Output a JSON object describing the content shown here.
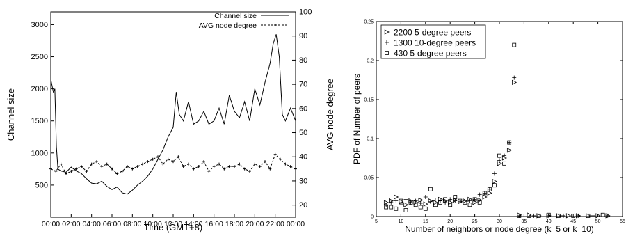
{
  "chart_data": [
    {
      "type": "line",
      "title": "",
      "xlabel": "Time (GMT+8)",
      "ylabel": "Channel size",
      "y2label": "AVG node degree",
      "ylim": [
        0,
        3200
      ],
      "y2lim": [
        15,
        100
      ],
      "xlim": [
        0,
        24
      ],
      "yticks": [
        "500",
        "1000",
        "1500",
        "2000",
        "2500",
        "3000"
      ],
      "y2ticks": [
        "20",
        "30",
        "40",
        "50",
        "60",
        "70",
        "80",
        "90",
        "100"
      ],
      "xticks": [
        "00:00",
        "02:00",
        "04:00",
        "06:00",
        "08:00",
        "10:00",
        "12:00",
        "14:00",
        "16:00",
        "18:00",
        "20:00",
        "22:00",
        "00:00"
      ],
      "legend_position": "top-right",
      "series": [
        {
          "name": "Channel size",
          "axis": "left",
          "style": "solid",
          "x": [
            0,
            0.25,
            0.4,
            0.55,
            0.7,
            1,
            1.5,
            2,
            2.5,
            3,
            3.5,
            4,
            4.5,
            5,
            5.5,
            6,
            6.5,
            7,
            7.5,
            8,
            8.5,
            9,
            9.5,
            10,
            10.5,
            11,
            11.5,
            12,
            12.3,
            12.6,
            13,
            13.5,
            14,
            14.5,
            15,
            15.5,
            16,
            16.5,
            17,
            17.5,
            18,
            18.5,
            19,
            19.5,
            20,
            20.5,
            21,
            21.5,
            21.8,
            22.1,
            22.4,
            22.7,
            23,
            23.5,
            24
          ],
          "values": [
            2150,
            1950,
            2000,
            1100,
            750,
            720,
            700,
            780,
            720,
            680,
            600,
            530,
            520,
            560,
            480,
            430,
            470,
            380,
            360,
            420,
            500,
            560,
            640,
            750,
            900,
            1050,
            1250,
            1400,
            1950,
            1600,
            1500,
            1800,
            1450,
            1500,
            1650,
            1450,
            1500,
            1700,
            1450,
            1900,
            1650,
            1550,
            1800,
            1500,
            2000,
            1750,
            2100,
            2400,
            2700,
            2850,
            2500,
            1600,
            1500,
            1700,
            1500
          ]
        },
        {
          "name": "AVG node degree",
          "axis": "right",
          "style": "dashed-markers",
          "x": [
            0,
            0.5,
            1,
            1.5,
            2,
            2.5,
            3,
            3.5,
            4,
            4.5,
            5,
            5.5,
            6,
            6.5,
            7,
            7.5,
            8,
            8.5,
            9,
            9.5,
            10,
            10.5,
            11,
            11.5,
            12,
            12.5,
            13,
            13.5,
            14,
            14.5,
            15,
            15.5,
            16,
            16.5,
            17,
            17.5,
            18,
            18.5,
            19,
            19.5,
            20,
            20.5,
            21,
            21.5,
            22,
            22.5,
            23,
            23.5,
            24
          ],
          "values": [
            35,
            34,
            37,
            33,
            34,
            35,
            36,
            34,
            37,
            38,
            36,
            37,
            35,
            33,
            34,
            36,
            35,
            36,
            37,
            38,
            39,
            40,
            37,
            39,
            38,
            40,
            36,
            37,
            35,
            36,
            38,
            34,
            36,
            37,
            35,
            36,
            36,
            37,
            35,
            34,
            37,
            36,
            38,
            35,
            41,
            39,
            37,
            36,
            35
          ]
        }
      ]
    },
    {
      "type": "scatter",
      "title": "",
      "xlabel": "Number of neighbors or node degree (k=5 or k=10)",
      "ylabel": "PDF of Number of peers",
      "xlim": [
        5,
        55
      ],
      "ylim": [
        0,
        0.25
      ],
      "xticks": [
        "5",
        "10",
        "15",
        "20",
        "25",
        "30",
        "35",
        "40",
        "45",
        "50",
        "55"
      ],
      "yticks": [
        "0",
        "0.05",
        "0.1",
        "0.15",
        "0.2",
        "0.25"
      ],
      "legend_position": "top-left",
      "series": [
        {
          "name": "2200 5-degree peers",
          "marker": "triangle-right",
          "x": [
            7,
            8,
            9,
            10,
            11,
            12,
            13,
            14,
            15,
            16,
            17,
            18,
            19,
            20,
            21,
            22,
            23,
            24,
            25,
            26,
            27,
            28,
            29,
            30,
            31,
            32,
            33,
            34,
            36,
            38,
            40,
            42,
            44,
            46,
            48,
            50,
            52
          ],
          "values": [
            0.018,
            0.02,
            0.025,
            0.019,
            0.015,
            0.02,
            0.018,
            0.021,
            0.016,
            0.02,
            0.018,
            0.022,
            0.02,
            0.018,
            0.021,
            0.019,
            0.02,
            0.022,
            0.018,
            0.021,
            0.025,
            0.03,
            0.045,
            0.068,
            0.075,
            0.085,
            0.172,
            0.002,
            0.002,
            0.001,
            0.001,
            0.001,
            0.001,
            0.001,
            0.001,
            0.001,
            0.001
          ]
        },
        {
          "name": "1300 10-degree peers",
          "marker": "plus",
          "x": [
            7,
            8,
            9,
            10,
            11,
            12,
            13,
            14,
            15,
            16,
            17,
            18,
            19,
            20,
            21,
            22,
            23,
            24,
            25,
            26,
            27,
            28,
            29,
            30,
            31,
            32,
            33,
            34,
            37,
            40,
            43,
            46,
            49,
            52
          ],
          "values": [
            0.015,
            0.018,
            0.02,
            0.016,
            0.022,
            0.018,
            0.02,
            0.017,
            0.025,
            0.019,
            0.021,
            0.02,
            0.018,
            0.022,
            0.02,
            0.019,
            0.021,
            0.02,
            0.022,
            0.028,
            0.03,
            0.035,
            0.055,
            0.072,
            0.078,
            0.095,
            0.178,
            0.001,
            0.001,
            0.001,
            0.001,
            0.001,
            0.001,
            0.001
          ]
        },
        {
          "name": "430 5-degree peers",
          "marker": "square",
          "x": [
            7,
            8,
            9,
            10,
            11,
            12,
            13,
            14,
            15,
            16,
            17,
            18,
            19,
            20,
            21,
            22,
            23,
            24,
            25,
            26,
            27,
            28,
            29,
            30,
            31,
            32,
            33,
            34,
            36,
            38,
            40,
            42,
            45,
            48,
            51
          ],
          "values": [
            0.012,
            0.012,
            0.01,
            0.02,
            0.008,
            0.018,
            0.015,
            0.012,
            0.01,
            0.035,
            0.015,
            0.018,
            0.022,
            0.015,
            0.025,
            0.02,
            0.018,
            0.015,
            0.022,
            0.018,
            0.03,
            0.035,
            0.04,
            0.078,
            0.068,
            0.095,
            0.22,
            0.001,
            0.001,
            0.001,
            0.002,
            0.001,
            0.001,
            0.001,
            0.002
          ]
        }
      ]
    }
  ]
}
